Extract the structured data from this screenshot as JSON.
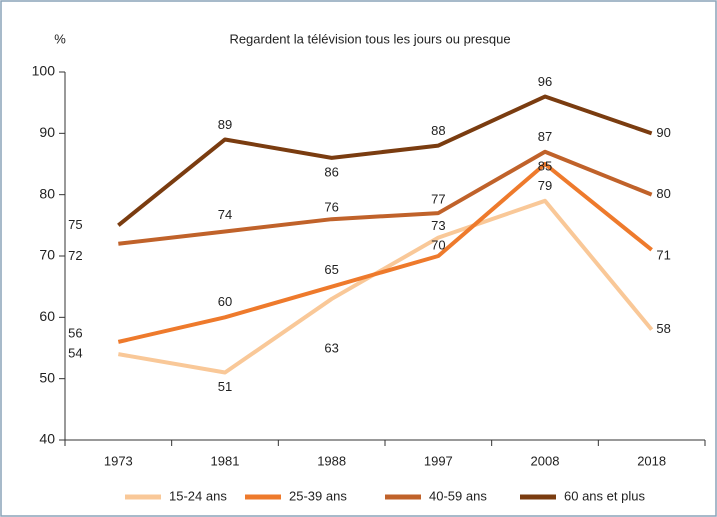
{
  "chart_data": {
    "type": "line",
    "title": "Regardent la télévision tous les jours ou presque",
    "ylabel": "%",
    "categories": [
      "1973",
      "1981",
      "1988",
      "1997",
      "2008",
      "2018"
    ],
    "series": [
      {
        "name": "15-24 ans",
        "color": "#f9c898",
        "values": [
          54,
          51,
          63,
          73,
          79,
          58
        ]
      },
      {
        "name": "25-39 ans",
        "color": "#ee7a2c",
        "values": [
          56,
          60,
          65,
          70,
          85,
          71
        ]
      },
      {
        "name": "40-59 ans",
        "color": "#c0622a",
        "values": [
          72,
          74,
          76,
          77,
          87,
          80
        ]
      },
      {
        "name": "60 ans et plus",
        "color": "#7a3c10",
        "values": [
          75,
          89,
          86,
          88,
          96,
          90
        ]
      }
    ],
    "ylim": [
      40,
      100
    ],
    "yticks": [
      40,
      50,
      60,
      70,
      80,
      90,
      100
    ]
  }
}
